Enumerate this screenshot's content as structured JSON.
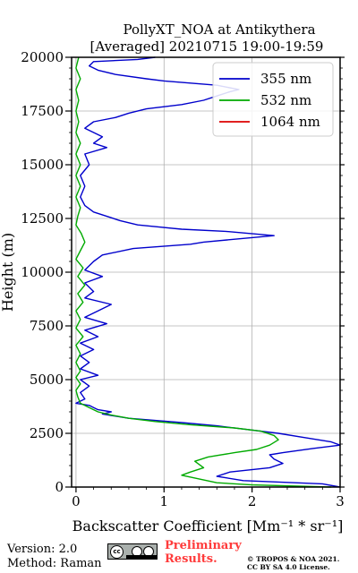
{
  "chart_data": {
    "type": "line",
    "title_line1": "PollyXT_NOA at Antikythera",
    "title_line2": "[Averaged] 20210715 19:00-19:59",
    "xlabel": "Backscatter Coefficient [Mm⁻¹ * sr⁻¹]",
    "ylabel": "Height (m)",
    "xlim": [
      -0.05,
      3
    ],
    "ylim": [
      0,
      20000
    ],
    "x_ticks": [
      0,
      1,
      2,
      3
    ],
    "x_tick_labels": [
      "0",
      "1",
      "2",
      "3"
    ],
    "y_ticks": [
      0,
      2500,
      5000,
      7500,
      10000,
      12500,
      15000,
      17500,
      20000
    ],
    "y_tick_labels": [
      "0",
      "2500",
      "5000",
      "7500",
      "10000",
      "12500",
      "15000",
      "17500",
      "20000"
    ],
    "grid": true,
    "legend_position": "top-right",
    "series": [
      {
        "name": "355 nm",
        "color": "#0000cc",
        "points": [
          [
            3.0,
            0
          ],
          [
            2.8,
            150
          ],
          [
            1.9,
            300
          ],
          [
            1.6,
            500
          ],
          [
            1.75,
            700
          ],
          [
            2.2,
            900
          ],
          [
            2.35,
            1100
          ],
          [
            2.25,
            1300
          ],
          [
            2.2,
            1500
          ],
          [
            2.35,
            1600
          ],
          [
            2.7,
            1800
          ],
          [
            3.0,
            1950
          ],
          [
            2.9,
            2100
          ],
          [
            2.6,
            2300
          ],
          [
            2.3,
            2500
          ],
          [
            1.9,
            2700
          ],
          [
            1.6,
            2850
          ],
          [
            1.2,
            3000
          ],
          [
            0.9,
            3100
          ],
          [
            0.6,
            3200
          ],
          [
            0.45,
            3300
          ],
          [
            0.3,
            3400
          ],
          [
            0.4,
            3500
          ],
          [
            0.25,
            3600
          ],
          [
            0.2,
            3700
          ],
          [
            0.15,
            3800
          ],
          [
            0.0,
            3900
          ],
          [
            0.1,
            4100
          ],
          [
            0.05,
            4400
          ],
          [
            0.15,
            4700
          ],
          [
            0.05,
            5000
          ],
          [
            0.25,
            5200
          ],
          [
            0.05,
            5500
          ],
          [
            0.15,
            5800
          ],
          [
            0.05,
            6100
          ],
          [
            0.2,
            6400
          ],
          [
            0.05,
            6700
          ],
          [
            0.25,
            7000
          ],
          [
            0.1,
            7300
          ],
          [
            0.35,
            7600
          ],
          [
            0.1,
            7900
          ],
          [
            0.25,
            8200
          ],
          [
            0.4,
            8500
          ],
          [
            0.1,
            8800
          ],
          [
            0.2,
            9100
          ],
          [
            0.1,
            9500
          ],
          [
            0.3,
            9800
          ],
          [
            0.1,
            10100
          ],
          [
            0.2,
            10500
          ],
          [
            0.3,
            10800
          ],
          [
            0.65,
            11100
          ],
          [
            1.3,
            11300
          ],
          [
            1.45,
            11400
          ],
          [
            2.25,
            11700
          ],
          [
            1.7,
            11900
          ],
          [
            1.2,
            12000
          ],
          [
            0.7,
            12200
          ],
          [
            0.5,
            12400
          ],
          [
            0.35,
            12600
          ],
          [
            0.2,
            12800
          ],
          [
            0.1,
            13100
          ],
          [
            0.05,
            13500
          ],
          [
            0.1,
            14000
          ],
          [
            0.05,
            14500
          ],
          [
            0.15,
            15000
          ],
          [
            0.1,
            15500
          ],
          [
            0.35,
            15800
          ],
          [
            0.2,
            16000
          ],
          [
            0.3,
            16300
          ],
          [
            0.1,
            16700
          ],
          [
            0.2,
            17000
          ],
          [
            0.45,
            17200
          ],
          [
            0.6,
            17400
          ],
          [
            0.8,
            17600
          ],
          [
            1.2,
            17800
          ],
          [
            1.45,
            18000
          ],
          [
            1.6,
            18200
          ],
          [
            1.75,
            18400
          ],
          [
            1.85,
            18500
          ],
          [
            1.6,
            18700
          ],
          [
            1.0,
            18900
          ],
          [
            0.8,
            19000
          ],
          [
            0.45,
            19200
          ],
          [
            0.25,
            19400
          ],
          [
            0.15,
            19600
          ],
          [
            0.2,
            19800
          ],
          [
            0.7,
            19900
          ],
          [
            0.9,
            20000
          ]
        ]
      },
      {
        "name": "532 nm",
        "color": "#00aa00",
        "points": [
          [
            2.9,
            0
          ],
          [
            2.0,
            100
          ],
          [
            1.6,
            200
          ],
          [
            1.2,
            550
          ],
          [
            1.3,
            700
          ],
          [
            1.45,
            900
          ],
          [
            1.35,
            1200
          ],
          [
            1.5,
            1400
          ],
          [
            1.8,
            1600
          ],
          [
            2.05,
            1750
          ],
          [
            2.2,
            1950
          ],
          [
            2.3,
            2200
          ],
          [
            2.25,
            2400
          ],
          [
            2.1,
            2600
          ],
          [
            1.8,
            2750
          ],
          [
            1.3,
            2900
          ],
          [
            0.9,
            3050
          ],
          [
            0.6,
            3200
          ],
          [
            0.4,
            3350
          ],
          [
            0.25,
            3500
          ],
          [
            0.15,
            3700
          ],
          [
            0.05,
            3900
          ],
          [
            0.02,
            4200
          ],
          [
            0.0,
            4500
          ],
          [
            0.05,
            4800
          ],
          [
            0.0,
            5100
          ],
          [
            0.05,
            5400
          ],
          [
            0.0,
            5800
          ],
          [
            0.05,
            6200
          ],
          [
            0.0,
            6600
          ],
          [
            0.08,
            7000
          ],
          [
            0.0,
            7400
          ],
          [
            0.05,
            7800
          ],
          [
            0.0,
            8200
          ],
          [
            0.08,
            8600
          ],
          [
            0.02,
            9000
          ],
          [
            0.1,
            9400
          ],
          [
            0.02,
            9800
          ],
          [
            0.08,
            10200
          ],
          [
            0.0,
            10600
          ],
          [
            0.05,
            11000
          ],
          [
            0.1,
            11400
          ],
          [
            0.06,
            11800
          ],
          [
            0.0,
            12200
          ],
          [
            0.02,
            12600
          ],
          [
            0.05,
            13000
          ],
          [
            0.0,
            13500
          ],
          [
            0.05,
            14000
          ],
          [
            0.0,
            14500
          ],
          [
            0.05,
            15000
          ],
          [
            0.0,
            15500
          ],
          [
            0.05,
            16000
          ],
          [
            0.0,
            16500
          ],
          [
            0.03,
            17000
          ],
          [
            0.0,
            17500
          ],
          [
            0.03,
            18000
          ],
          [
            0.0,
            18500
          ],
          [
            0.05,
            19000
          ],
          [
            0.0,
            19500
          ],
          [
            0.03,
            20000
          ]
        ]
      },
      {
        "name": "1064 nm",
        "color": "#dd0000",
        "points": []
      }
    ]
  },
  "footer": {
    "version": "Version: 2.0",
    "method": "Method: Raman",
    "preliminary_line1": "Preliminary",
    "preliminary_line2": "Results.",
    "copyright_line1": "© TROPOS & NOA 2021.",
    "copyright_line2": "CC BY SA 4.0 License.",
    "license_badge_text": "cc"
  }
}
